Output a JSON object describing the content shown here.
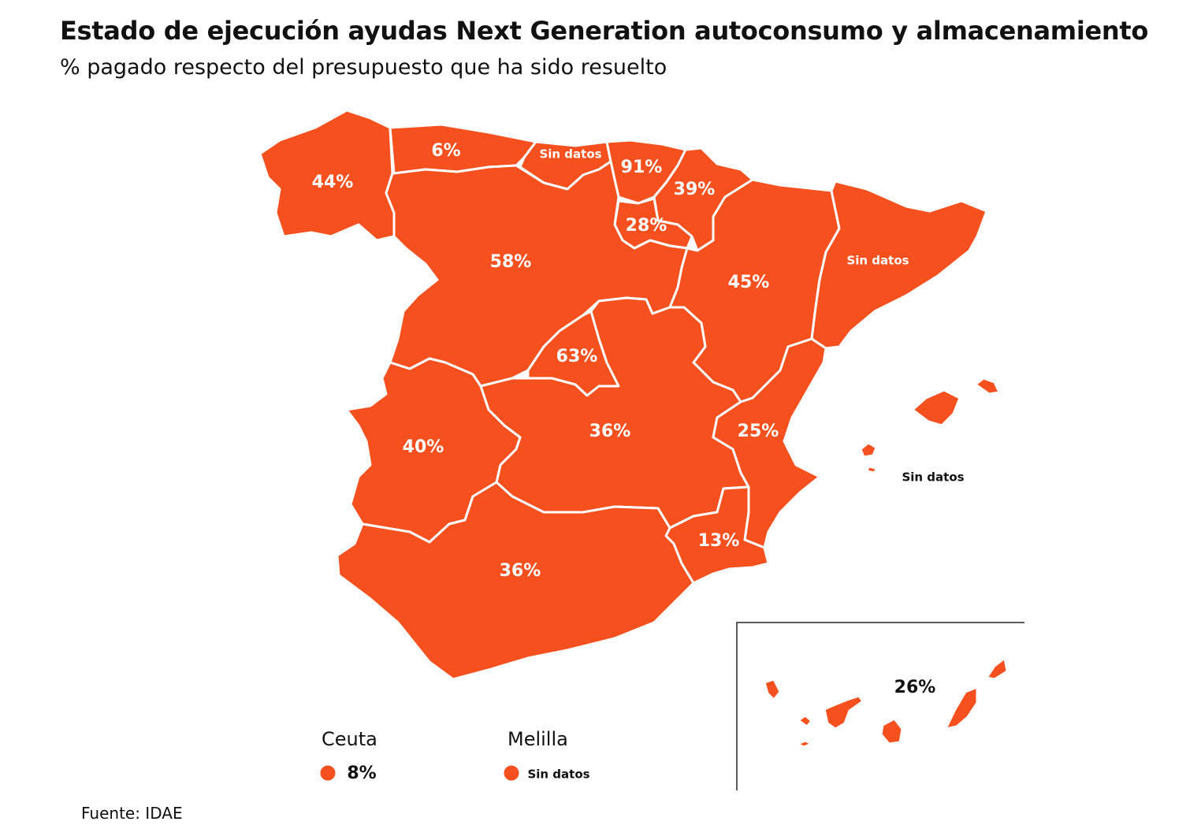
{
  "header": {
    "title": "Estado de ejecución ayudas Next Generation autoconsumo y almacenamiento",
    "subtitle": "% pagado respecto del presupuesto que ha sido resuelto"
  },
  "regions": {
    "galicia": "44%",
    "asturias": "6%",
    "cantabria": "Sin datos",
    "pais_vasco": "91%",
    "navarra": "39%",
    "la_rioja": "28%",
    "castilla_leon": "58%",
    "aragon": "45%",
    "cataluna": "Sin datos",
    "madrid": "63%",
    "castilla_la_mancha": "36%",
    "extremadura": "40%",
    "comunitat_valenciana": "25%",
    "murcia": "13%",
    "andalucia": "36%",
    "baleares": "Sin datos",
    "canarias": "26%"
  },
  "cities": {
    "ceuta": {
      "name": "Ceuta",
      "value": "8%"
    },
    "melilla": {
      "name": "Melilla",
      "value": "Sin datos"
    }
  },
  "colors": {
    "fill": "#f5501d",
    "border": "#ffffff"
  },
  "footer": {
    "source": "Fuente: IDAE"
  }
}
